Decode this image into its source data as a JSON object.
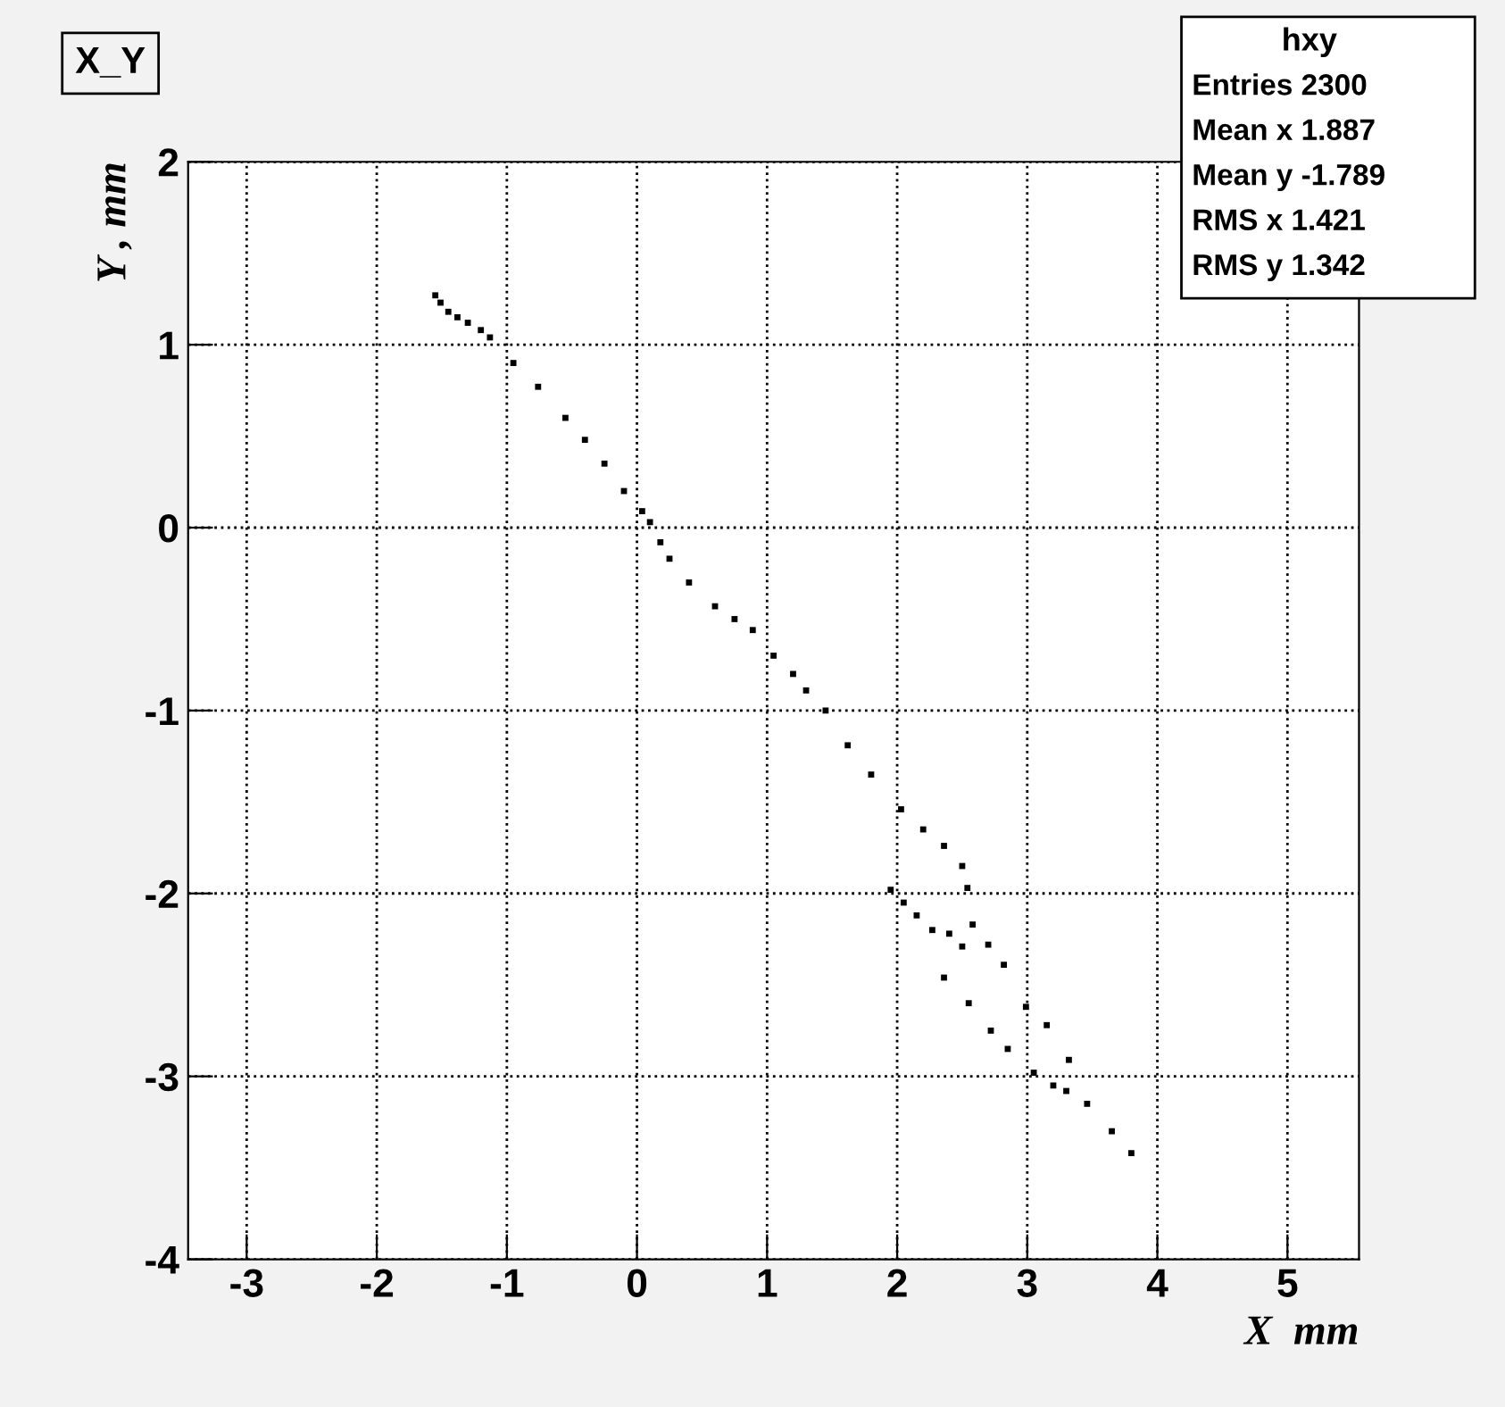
{
  "chart_data": {
    "type": "scatter",
    "title": "X_Y",
    "xlabel": "X  mm",
    "ylabel": "Y , mm",
    "x": [
      -1.55,
      -1.51,
      -1.45,
      -1.38,
      -1.3,
      -1.2,
      -1.13,
      -0.95,
      -0.76,
      -0.55,
      -0.4,
      -0.25,
      -0.1,
      0.04,
      0.1,
      0.18,
      0.25,
      0.4,
      0.6,
      0.75,
      0.89,
      1.05,
      1.2,
      1.3,
      1.45,
      1.62,
      1.8,
      2.03,
      2.2,
      2.36,
      2.5,
      2.54,
      2.58,
      2.7,
      2.82,
      2.99,
      3.15,
      3.32,
      1.95,
      2.05,
      2.15,
      2.27,
      2.4,
      2.5,
      2.36,
      2.55,
      2.72,
      2.85,
      3.05,
      3.2,
      3.3,
      3.46,
      3.65,
      3.8
    ],
    "values": [
      1.27,
      1.23,
      1.18,
      1.15,
      1.12,
      1.08,
      1.04,
      0.9,
      0.77,
      0.6,
      0.48,
      0.35,
      0.2,
      0.09,
      0.03,
      -0.08,
      -0.17,
      -0.3,
      -0.43,
      -0.5,
      -0.56,
      -0.7,
      -0.8,
      -0.89,
      -1.0,
      -1.19,
      -1.35,
      -1.54,
      -1.65,
      -1.74,
      -1.85,
      -1.97,
      -2.17,
      -2.28,
      -2.39,
      -2.62,
      -2.72,
      -2.91,
      -1.98,
      -2.05,
      -2.12,
      -2.2,
      -2.22,
      -2.29,
      -2.46,
      -2.6,
      -2.75,
      -2.85,
      -2.98,
      -3.05,
      -3.08,
      -3.15,
      -3.3,
      -3.42
    ],
    "color": "#000000",
    "marker": "square",
    "xlim": [
      -3.45,
      5.55
    ],
    "ylim": [
      -4,
      2
    ],
    "xticks": [
      -3,
      -2,
      -1,
      0,
      1,
      2,
      3,
      4,
      5
    ],
    "yticks": [
      -4,
      -3,
      -2,
      -1,
      0,
      1,
      2
    ],
    "grid": true,
    "annotations": [
      "hxy",
      "Entries 2300",
      "Mean x 1.887",
      "Mean y -1.789",
      "RMS x 1.421",
      "RMS y 1.342"
    ]
  }
}
